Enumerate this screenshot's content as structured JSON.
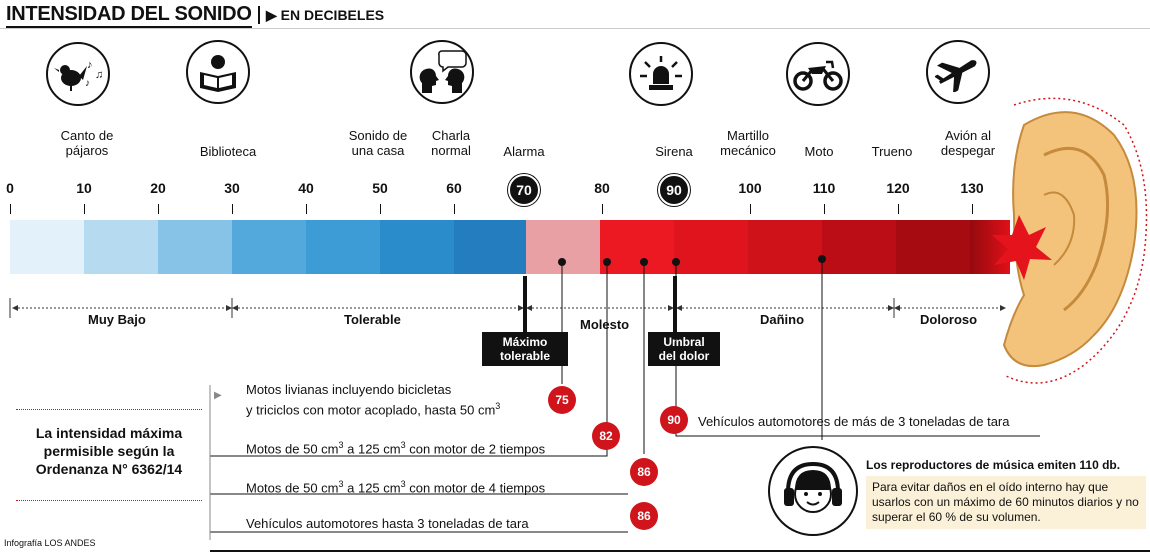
{
  "header": {
    "title": "INTENSIDAD DEL SONIDO",
    "subtitle": "EN DECIBELES"
  },
  "sources": [
    {
      "label": "Canto de\npájaros",
      "icon": "bird-icon"
    },
    {
      "label": "Biblioteca",
      "icon": "reading-icon"
    },
    {
      "label": "Sonido de\nuna casa"
    },
    {
      "label": "Charla\nnormal",
      "icon": "talking-heads-icon"
    },
    {
      "label": "Alarma"
    },
    {
      "label": "Sirena",
      "icon": "siren-icon"
    },
    {
      "label": "Martillo\nmecánico"
    },
    {
      "label": "Moto",
      "icon": "motorcycle-icon"
    },
    {
      "label": "Trueno"
    },
    {
      "label": "Avión al\ndespegar",
      "icon": "airplane-icon"
    }
  ],
  "scale": {
    "ticks": [
      "0",
      "10",
      "20",
      "30",
      "40",
      "50",
      "60",
      "70",
      "80",
      "90",
      "100",
      "110",
      "120",
      "130"
    ],
    "marker_70": "70",
    "marker_90": "90"
  },
  "ranges": {
    "muy_bajo": "Muy Bajo",
    "tolerable": "Tolerable",
    "molesto": "Molesto",
    "danino": "Dañino",
    "doloroso": "Doloroso"
  },
  "thresholds": {
    "maximo": "Máximo\ntolerable",
    "umbral": "Umbral\ndel dolor"
  },
  "ordinance": {
    "title": "La intensidad máxima\npermisible según la\nOrdenanza N° 6362/14",
    "items": [
      {
        "line1": "Motos livianas incluyendo bicicletas",
        "line2": "y triciclos con motor acoplado, hasta 50 cm",
        "sup": "3",
        "value": "75"
      },
      {
        "text_a": "Motos de 50 cm",
        "sup_a": "3",
        "text_b": " a 125 cm",
        "sup_b": "3",
        "text_c": " con motor de 2 tiempos",
        "value": "82"
      },
      {
        "text_a": "Motos de 50 cm",
        "sup_a": "3",
        "text_b": " a 125 cm",
        "sup_b": "3",
        "text_c": " con motor de 4 tiempos",
        "value": "86"
      },
      {
        "text": "Vehículos automotores hasta 3 toneladas de tara",
        "value": "86"
      },
      {
        "text": "Vehículos automotores de más de 3 toneladas de tara",
        "value": "90"
      }
    ]
  },
  "music": {
    "headline": "Los reproductores de música emiten 110 db.",
    "advice": "Para evitar daños en el oído interno hay que usarlos con un máximo de 60 minutos diarios y no superar el 60 % de su volumen."
  },
  "credit": "Infografía LOS ANDES",
  "colors": {
    "low1": "#dceef8",
    "low2": "#aed6ee",
    "low3": "#7ec0e4",
    "mid": "#3a9ad6",
    "mid2": "#1f7fc1",
    "pink": "#e99aa0",
    "red1": "#e9121c",
    "red2": "#d4101a",
    "red3": "#b80c14",
    "red4": "#990a10",
    "accent": "#d0141b"
  }
}
